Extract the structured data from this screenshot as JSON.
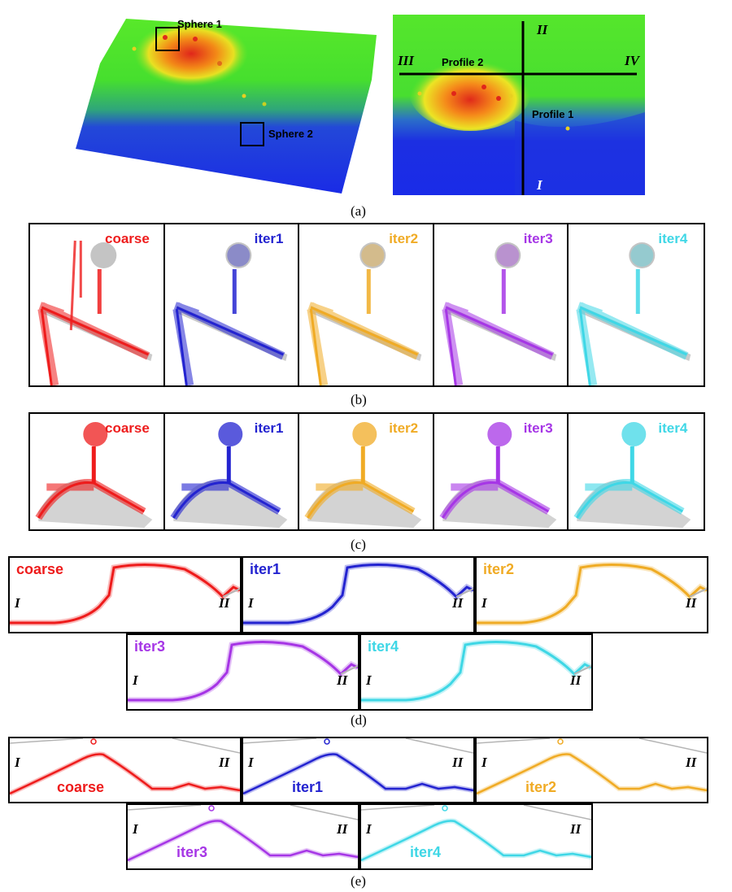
{
  "panel_a": {
    "sphere1": "Sphere 1",
    "sphere2": "Sphere 2",
    "profile1": "Profile 1",
    "profile2": "Profile 2",
    "roman": {
      "I": "I",
      "II": "II",
      "III": "III",
      "IV": "IV"
    }
  },
  "captions": {
    "a": "(a)",
    "b": "(b)",
    "c": "(c)",
    "d": "(d)",
    "e": "(e)"
  },
  "series": [
    {
      "label": "coarse",
      "color": "#ee1c1c"
    },
    {
      "label": "iter1",
      "color": "#2323d0"
    },
    {
      "label": "iter2",
      "color": "#f0ab25"
    },
    {
      "label": "iter3",
      "color": "#a636e6"
    },
    {
      "label": "iter4",
      "color": "#3fd7e6"
    }
  ],
  "profile_ends": {
    "start": "I",
    "end": "II"
  },
  "colors": {
    "pointcloud_blue": "#1b2fe0",
    "pointcloud_green": "#39e020",
    "pointcloud_red": "#e0301a",
    "reference_gray": "#b5b5b5"
  }
}
